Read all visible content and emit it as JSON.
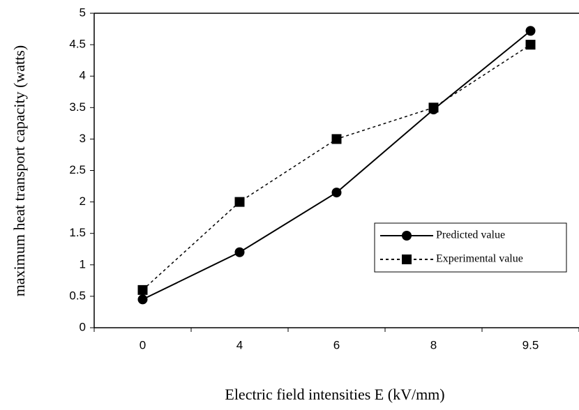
{
  "chart_data": {
    "type": "line",
    "x_label": "Electric field intensities E (kV/mm)",
    "y_label": "maximum heat transport capacity (watts)",
    "categories": [
      "0",
      "4",
      "6",
      "8",
      "9.5"
    ],
    "series": [
      {
        "name": "Predicted value",
        "color": "#000000",
        "marker": "circle",
        "linestyle": "solid",
        "values": [
          0.45,
          1.2,
          2.15,
          3.47,
          4.72
        ]
      },
      {
        "name": "Experimental value",
        "color": "#000000",
        "marker": "square",
        "linestyle": "dotted",
        "values": [
          0.6,
          2,
          3,
          3.5,
          4.5
        ]
      }
    ],
    "ylim": [
      0,
      5
    ],
    "yticks": [
      0,
      0.5,
      1,
      1.5,
      2,
      2.5,
      3,
      3.5,
      4,
      4.5,
      5
    ],
    "legend": "right",
    "grid": false
  }
}
